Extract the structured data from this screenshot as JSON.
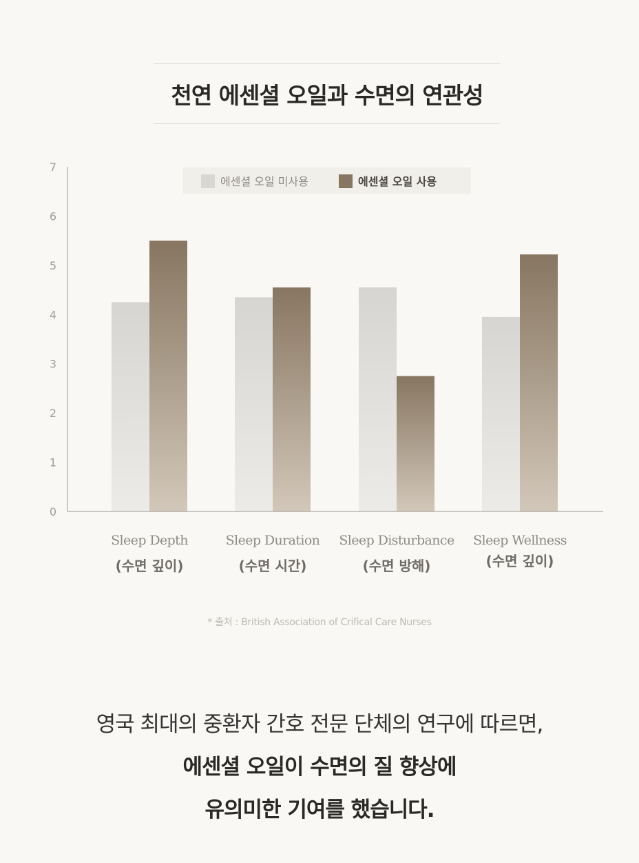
{
  "title": "천연 에센셜 오일과 수면의 연관성",
  "source": "* 출처 : British Association of Crifical Care Nurses",
  "summary": {
    "line1": "영국 최대의 중환자 간호 전문 단체의 연구에 따르면,",
    "line2": "에센셜 오일이 수면의 질 향상에",
    "line3": "유의미한 기여를 했습니다."
  },
  "colors": {
    "no_oil_top": "#d7d5d1",
    "no_oil_bottom": "#ecebe8",
    "oil_top": "#877661",
    "oil_bottom": "#d2c7b9",
    "axis": "#9a9792",
    "tick_text": "#a09d98"
  },
  "chart_data": {
    "type": "bar",
    "categories": [
      {
        "en": "Sleep Depth",
        "ko": "(수면 깊이)"
      },
      {
        "en": "Sleep Duration",
        "ko": "(수면 시간)"
      },
      {
        "en": "Sleep Disturbance",
        "ko": "(수면 방해)"
      },
      {
        "en": "Sleep Wellness",
        "ko": "(수면 깊이)"
      }
    ],
    "series": [
      {
        "name": "에센셜 오일 미사용",
        "values": [
          4.25,
          4.35,
          4.55,
          3.95
        ]
      },
      {
        "name": "에센셜 오일 사용",
        "values": [
          5.5,
          4.55,
          2.75,
          5.22
        ]
      }
    ],
    "ylim": [
      0,
      7
    ],
    "yticks": [
      "0",
      "1",
      "2",
      "3",
      "4",
      "5",
      "6",
      "7"
    ],
    "legend_position": "top-center",
    "grid": false
  }
}
